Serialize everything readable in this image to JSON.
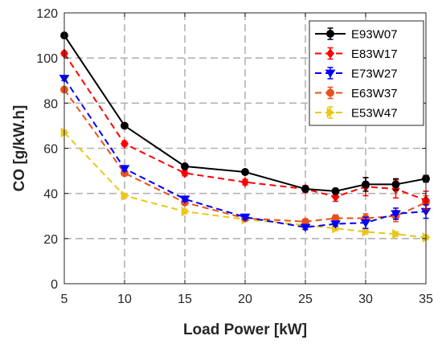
{
  "chart_data": {
    "type": "line",
    "title": "",
    "xlabel": "Load Power [kW]",
    "ylabel": "CO [g/kW.h]",
    "xlim": [
      5,
      35
    ],
    "ylim": [
      0,
      120
    ],
    "x_ticks": [
      5,
      10,
      15,
      20,
      25,
      30,
      35
    ],
    "y_ticks": [
      0,
      20,
      40,
      60,
      80,
      100,
      120
    ],
    "x": [
      5,
      10,
      15,
      20,
      25,
      27.5,
      30,
      32.5,
      35
    ],
    "grid": true,
    "legend_position": "top-right",
    "series": [
      {
        "name": "E93W07",
        "color": "#000000",
        "line": "solid",
        "marker": "circle",
        "values": [
          110,
          70,
          52,
          49.5,
          42,
          41,
          44,
          44,
          46.5
        ],
        "errors": [
          1,
          1,
          1,
          1,
          1,
          1.2,
          3,
          2.5,
          1.5
        ]
      },
      {
        "name": "E83W17",
        "color": "#ff0000",
        "line": "dashed",
        "marker": "diamond",
        "values": [
          102,
          62,
          49,
          45,
          42,
          38.5,
          43,
          42,
          37
        ],
        "errors": [
          1,
          1,
          1.2,
          1.2,
          1.5,
          2,
          4,
          4,
          4
        ]
      },
      {
        "name": "E73W27",
        "color": "#0000ff",
        "line": "dashed",
        "marker": "triangle-down",
        "values": [
          91,
          51,
          37.5,
          29.5,
          25,
          26.5,
          27,
          31,
          32
        ],
        "errors": [
          1,
          1,
          1,
          1,
          1,
          1,
          2.5,
          2.5,
          3
        ]
      },
      {
        "name": "E63W37",
        "color": "#e8521a",
        "line": "dashed",
        "marker": "circle",
        "values": [
          86,
          49,
          36,
          29,
          27.5,
          29,
          29,
          30,
          36
        ],
        "errors": [
          1,
          1,
          1,
          1,
          1,
          1.5,
          2,
          2.5,
          3
        ]
      },
      {
        "name": "E53W47",
        "color": "#e8c81a",
        "line": "dashed",
        "marker": "triangle-right",
        "values": [
          67,
          39,
          32,
          28.5,
          26,
          24.5,
          23,
          22,
          20.5
        ],
        "errors": [
          1,
          1,
          1,
          1,
          1,
          1,
          1,
          1,
          1
        ]
      }
    ]
  }
}
